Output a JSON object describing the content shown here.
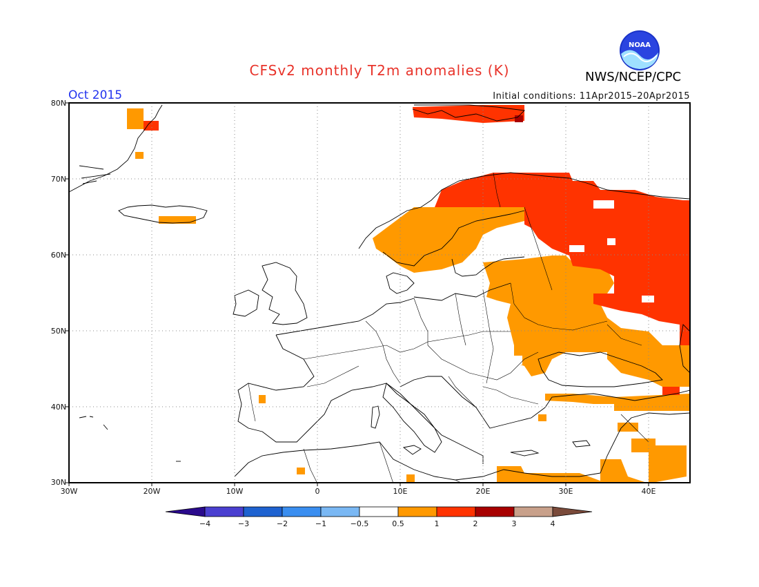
{
  "header": {
    "title": "CFSv2 monthly T2m anomalies (K)",
    "agency": "NWS/NCEP/CPC",
    "logo_text": "NOAA",
    "valid_month": "Oct 2015",
    "initial_conditions": "Initial conditions: 11Apr2015–20Apr2015"
  },
  "map": {
    "lat_labels": [
      "80N",
      "70N",
      "60N",
      "50N",
      "40N",
      "30N"
    ],
    "lon_labels": [
      "30W",
      "20W",
      "10W",
      "0",
      "10E",
      "20E",
      "30E",
      "40E"
    ],
    "extent": {
      "lon": [
        -30,
        45
      ],
      "lat": [
        30,
        80
      ]
    },
    "grid": "dotted",
    "anomaly_regions": [
      {
        "name": "Svalbard",
        "category": "1 to 2"
      },
      {
        "name": "Greenland east coast",
        "category": "0.5 to 1"
      },
      {
        "name": "Iceland",
        "category": "0.5 to 1"
      },
      {
        "name": "Scandinavia / Finland",
        "category": "1 to 2"
      },
      {
        "name": "Northwest Russia",
        "category": "1 to 2"
      },
      {
        "name": "Eastern Europe / Ukraine",
        "category": "0.5 to 1"
      },
      {
        "name": "Turkey / Caucasus",
        "category": "0.5 to 1"
      },
      {
        "name": "Eastern Mediterranean / Middle East",
        "category": "0.5 to 1"
      }
    ]
  },
  "colorbar": {
    "labels": [
      "−4",
      "−3",
      "−2",
      "−1",
      "−0.5",
      "0.5",
      "1",
      "2",
      "3",
      "4"
    ],
    "colors": [
      "#2a0a8c",
      "#4a3fd0",
      "#1e62d0",
      "#3a8ef0",
      "#7ab8f4",
      "#ffffff",
      "#ff9900",
      "#ff3300",
      "#a80000",
      "#c8a08a",
      "#7a4a3a"
    ]
  }
}
